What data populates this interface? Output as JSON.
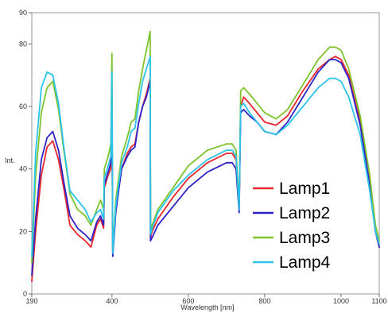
{
  "chart_data": {
    "type": "line",
    "xlabel": "Wavelength [nm]",
    "ylabel": "Int.",
    "xlim": [
      190,
      1100
    ],
    "ylim": [
      0,
      90
    ],
    "x_ticks": [
      190,
      400,
      600,
      800,
      1000,
      1100
    ],
    "y_ticks": [
      0,
      20,
      40,
      60,
      80,
      90
    ],
    "grid": false,
    "legend": "bottom-right",
    "series": [
      {
        "name": "Lamp1",
        "color": "#e8262b",
        "x": [
          190,
          200,
          215,
          230,
          245,
          260,
          275,
          290,
          310,
          330,
          345,
          360,
          370,
          378,
          380,
          390,
          397,
          400,
          402,
          410,
          425,
          440,
          450,
          460,
          470,
          480,
          490,
          500,
          501,
          505,
          520,
          560,
          600,
          650,
          700,
          715,
          725,
          733,
          737,
          745,
          760,
          780,
          800,
          830,
          860,
          900,
          940,
          970,
          985,
          1000,
          1020,
          1050,
          1075,
          1090,
          1100
        ],
        "y": [
          4,
          20,
          38,
          47,
          49,
          43,
          33,
          22,
          19,
          17,
          15,
          22,
          24,
          21,
          34,
          38,
          40,
          57,
          14,
          27,
          40,
          45,
          47,
          48,
          55,
          60,
          64,
          69,
          18,
          20,
          24,
          31,
          37,
          42,
          45,
          45,
          43,
          27,
          60,
          63,
          61,
          58,
          55,
          54,
          57,
          65,
          72,
          75,
          76,
          75,
          70,
          55,
          35,
          20,
          15
        ]
      },
      {
        "name": "Lamp2",
        "color": "#2c22c8",
        "x": [
          190,
          200,
          215,
          230,
          245,
          260,
          275,
          290,
          310,
          330,
          345,
          360,
          370,
          378,
          380,
          390,
          397,
          400,
          402,
          410,
          425,
          440,
          450,
          460,
          470,
          480,
          490,
          500,
          501,
          505,
          520,
          560,
          600,
          650,
          700,
          715,
          725,
          733,
          737,
          745,
          760,
          780,
          800,
          830,
          860,
          900,
          940,
          970,
          985,
          1000,
          1020,
          1050,
          1075,
          1090,
          1100
        ],
        "y": [
          6,
          24,
          43,
          50,
          52,
          46,
          35,
          25,
          21,
          19,
          17,
          23,
          25,
          22,
          35,
          39,
          42,
          67,
          12,
          26,
          40,
          44,
          46,
          47,
          55,
          60,
          63,
          68,
          17,
          18,
          22,
          28,
          34,
          39,
          42,
          42,
          40,
          26,
          58,
          59,
          57,
          55,
          52,
          51,
          55,
          63,
          71,
          75,
          75,
          74,
          69,
          54,
          35,
          20,
          15
        ]
      },
      {
        "name": "Lamp3",
        "color": "#7dc42c",
        "x": [
          190,
          200,
          215,
          230,
          245,
          260,
          275,
          290,
          310,
          330,
          345,
          360,
          370,
          378,
          380,
          390,
          397,
          400,
          402,
          410,
          425,
          440,
          450,
          460,
          470,
          480,
          490,
          500,
          501,
          505,
          520,
          560,
          600,
          650,
          700,
          715,
          725,
          733,
          737,
          745,
          760,
          780,
          800,
          830,
          860,
          900,
          940,
          970,
          985,
          1000,
          1020,
          1050,
          1075,
          1090,
          1100
        ],
        "y": [
          10,
          38,
          58,
          66,
          68,
          59,
          45,
          32,
          27,
          25,
          22,
          27,
          30,
          27,
          40,
          44,
          48,
          77,
          14,
          30,
          44,
          50,
          55,
          56,
          65,
          72,
          78,
          84,
          20,
          22,
          27,
          34,
          41,
          46,
          48,
          48,
          46,
          28,
          65,
          66,
          64,
          61,
          58,
          56,
          59,
          67,
          75,
          79,
          79,
          78,
          72,
          57,
          38,
          22,
          17
        ]
      },
      {
        "name": "Lamp4",
        "color": "#2bc3ec",
        "x": [
          190,
          200,
          215,
          230,
          245,
          260,
          275,
          290,
          310,
          330,
          345,
          360,
          370,
          378,
          380,
          390,
          397,
          400,
          402,
          410,
          425,
          440,
          450,
          460,
          470,
          480,
          490,
          500,
          501,
          505,
          520,
          560,
          600,
          650,
          700,
          715,
          725,
          733,
          737,
          745,
          760,
          780,
          800,
          830,
          860,
          900,
          940,
          970,
          985,
          1000,
          1020,
          1050,
          1075,
          1090,
          1100
        ],
        "y": [
          12,
          45,
          66,
          71,
          70,
          61,
          46,
          33,
          30,
          27,
          23,
          26,
          27,
          24,
          37,
          41,
          44,
          71,
          13,
          28,
          42,
          47,
          52,
          53,
          61,
          68,
          72,
          76,
          19,
          21,
          26,
          33,
          38,
          43,
          46,
          46,
          44,
          27,
          60,
          61,
          58,
          55,
          52,
          51,
          54,
          60,
          66,
          69,
          69,
          68,
          63,
          51,
          33,
          20,
          16
        ]
      }
    ]
  }
}
